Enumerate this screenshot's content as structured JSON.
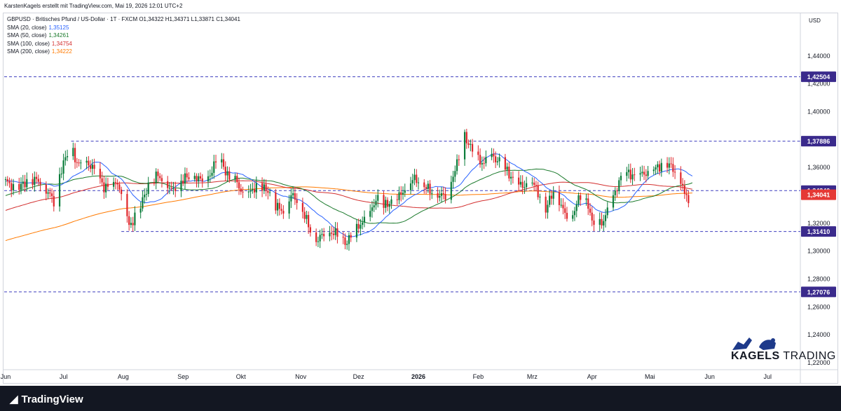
{
  "header": {
    "attribution": "KarstenKagels erstellt mit TradingView.com, Mai 19, 2026 12:01 UTC+2"
  },
  "legend": {
    "title": "GBPUSD · Britisches Pfund / US-Dollar · 1T · FXCM  O1,34322  H1,34371  L1,33871  C1,34041",
    "sma": [
      {
        "label": "SMA (20, close)",
        "value": "1,35125",
        "color": "#2962ff"
      },
      {
        "label": "SMA (50, close)",
        "value": "1,34261",
        "color": "#1b7a2c"
      },
      {
        "label": "SMA (100, close)",
        "value": "1,34754",
        "color": "#d32f2f"
      },
      {
        "label": "SMA (200, close)",
        "value": "1,34222",
        "color": "#ff7a00"
      }
    ]
  },
  "footer": {
    "brand": "TradingView"
  },
  "watermark": {
    "brand_a": "KAGELS",
    "brand_b": "TRADING"
  },
  "chart_data": {
    "type": "candlestick",
    "symbol": "GBPUSD",
    "currency_label": "USD",
    "ylim": [
      1.215,
      1.47
    ],
    "x_labels": [
      {
        "label": "Jun",
        "d": 0
      },
      {
        "label": "Jul",
        "d": 30
      },
      {
        "label": "Aug",
        "d": 61
      },
      {
        "label": "Sep",
        "d": 92
      },
      {
        "label": "Okt",
        "d": 122
      },
      {
        "label": "Nov",
        "d": 153
      },
      {
        "label": "Dez",
        "d": 183
      },
      {
        "label": "2026",
        "d": 214,
        "bold": true
      },
      {
        "label": "Feb",
        "d": 245
      },
      {
        "label": "Mrz",
        "d": 273
      },
      {
        "label": "Apr",
        "d": 304
      },
      {
        "label": "Mai",
        "d": 334
      },
      {
        "label": "Jun",
        "d": 365
      },
      {
        "label": "Jul",
        "d": 395
      }
    ],
    "y_ticks": [
      "1,44000",
      "1,42000",
      "1,40000",
      "1,38000",
      "1,36000",
      "1,32000",
      "1,30000",
      "1,28000",
      "1,26000",
      "1,24000",
      "1,22000"
    ],
    "levels": [
      {
        "label": "1,42504",
        "value": 1.42504
      },
      {
        "label": "1,37886",
        "value": 1.37886
      },
      {
        "label": "1,34340",
        "value": 1.3434
      },
      {
        "label": "1,31410",
        "value": 1.3141
      },
      {
        "label": "1,27076",
        "value": 1.27076
      }
    ],
    "current": {
      "label": "1,34041",
      "value": 1.34041
    },
    "price_path": [
      [
        0,
        1.35
      ],
      [
        6,
        1.344
      ],
      [
        12,
        1.352
      ],
      [
        18,
        1.35
      ],
      [
        22,
        1.342
      ],
      [
        25,
        1.336
      ],
      [
        28,
        1.355
      ],
      [
        32,
        1.37
      ],
      [
        34,
        1.378
      ],
      [
        37,
        1.362
      ],
      [
        42,
        1.364
      ],
      [
        46,
        1.358
      ],
      [
        51,
        1.346
      ],
      [
        55,
        1.345
      ],
      [
        58,
        1.35
      ],
      [
        62,
        1.328
      ],
      [
        64,
        1.318
      ],
      [
        66,
        1.322
      ],
      [
        70,
        1.332
      ],
      [
        74,
        1.348
      ],
      [
        78,
        1.354
      ],
      [
        82,
        1.352
      ],
      [
        86,
        1.343
      ],
      [
        90,
        1.35
      ],
      [
        94,
        1.353
      ],
      [
        98,
        1.354
      ],
      [
        102,
        1.35
      ],
      [
        106,
        1.355
      ],
      [
        110,
        1.367
      ],
      [
        112,
        1.364
      ],
      [
        116,
        1.351
      ],
      [
        120,
        1.35
      ],
      [
        124,
        1.336
      ],
      [
        128,
        1.345
      ],
      [
        132,
        1.345
      ],
      [
        136,
        1.344
      ],
      [
        140,
        1.332
      ],
      [
        144,
        1.329
      ],
      [
        148,
        1.34
      ],
      [
        152,
        1.336
      ],
      [
        156,
        1.322
      ],
      [
        160,
        1.307
      ],
      [
        164,
        1.311
      ],
      [
        168,
        1.314
      ],
      [
        172,
        1.312
      ],
      [
        176,
        1.306
      ],
      [
        180,
        1.311
      ],
      [
        184,
        1.32
      ],
      [
        188,
        1.323
      ],
      [
        192,
        1.338
      ],
      [
        196,
        1.332
      ],
      [
        200,
        1.336
      ],
      [
        204,
        1.339
      ],
      [
        208,
        1.347
      ],
      [
        212,
        1.352
      ],
      [
        216,
        1.349
      ],
      [
        220,
        1.343
      ],
      [
        224,
        1.341
      ],
      [
        228,
        1.339
      ],
      [
        230,
        1.347
      ],
      [
        234,
        1.362
      ],
      [
        236,
        1.375
      ],
      [
        238,
        1.383
      ],
      [
        240,
        1.377
      ],
      [
        244,
        1.366
      ],
      [
        248,
        1.363
      ],
      [
        252,
        1.368
      ],
      [
        256,
        1.364
      ],
      [
        260,
        1.357
      ],
      [
        264,
        1.35
      ],
      [
        268,
        1.346
      ],
      [
        272,
        1.352
      ],
      [
        276,
        1.342
      ],
      [
        280,
        1.33
      ],
      [
        284,
        1.343
      ],
      [
        286,
        1.34
      ],
      [
        290,
        1.326
      ],
      [
        294,
        1.327
      ],
      [
        298,
        1.34
      ],
      [
        302,
        1.334
      ],
      [
        304,
        1.32
      ],
      [
        306,
        1.318
      ],
      [
        310,
        1.322
      ],
      [
        314,
        1.335
      ],
      [
        318,
        1.35
      ],
      [
        322,
        1.356
      ],
      [
        326,
        1.354
      ],
      [
        330,
        1.355
      ],
      [
        334,
        1.357
      ],
      [
        338,
        1.36
      ],
      [
        342,
        1.364
      ],
      [
        346,
        1.359
      ],
      [
        350,
        1.352
      ],
      [
        352,
        1.34
      ],
      [
        354,
        1.338
      ],
      [
        356,
        1.341
      ]
    ]
  }
}
